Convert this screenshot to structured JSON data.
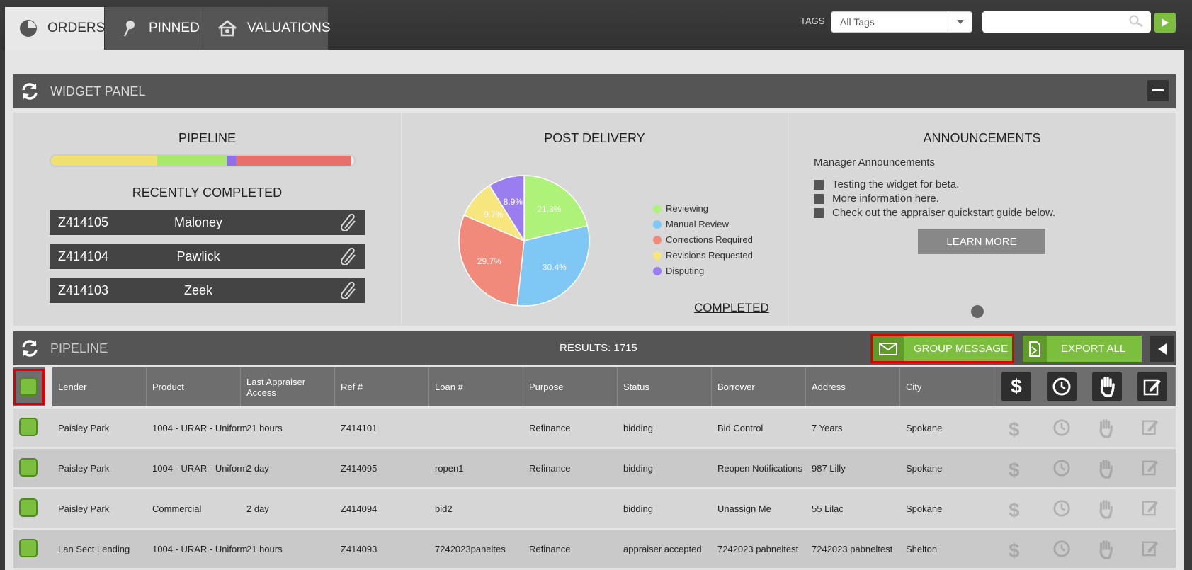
{
  "tabs": [
    {
      "label": "ORDERS",
      "icon": "pie-icon",
      "active": true
    },
    {
      "label": "PINNED",
      "icon": "pin-icon",
      "active": false
    },
    {
      "label": "VALUATIONS",
      "icon": "house-icon",
      "active": false
    }
  ],
  "tags": {
    "label": "TAGS",
    "value": "All Tags"
  },
  "widget_panel": {
    "title": "WIDGET PANEL"
  },
  "pipeline_widget": {
    "title": "PIPELINE",
    "bar_segments": [
      {
        "color": "#f0e070",
        "fraction": 0.35
      },
      {
        "color": "#a8e86c",
        "fraction": 0.23
      },
      {
        "color": "#8f70e8",
        "fraction": 0.03
      },
      {
        "color": "#e8706a",
        "fraction": 0.38
      }
    ],
    "recent_title": "RECENTLY COMPLETED",
    "recent": [
      {
        "ref": "Z414105",
        "name": "Maloney"
      },
      {
        "ref": "Z414104",
        "name": "Pawlick"
      },
      {
        "ref": "Z414103",
        "name": "Zeek"
      }
    ]
  },
  "post_delivery": {
    "title": "POST DELIVERY",
    "completed_link": "COMPLETED"
  },
  "chart_data": {
    "type": "pie",
    "title": "POST DELIVERY",
    "labels": [
      "Reviewing",
      "Manual Review",
      "Corrections Required",
      "Revisions Requested",
      "Disputing"
    ],
    "values": [
      21.3,
      30.4,
      29.7,
      9.7,
      8.9
    ],
    "value_labels": [
      "21.3%",
      "30.4%",
      "29.7%",
      "9.7%",
      "8.9%"
    ],
    "colors": [
      "#aef27a",
      "#7fc7f5",
      "#f28a7c",
      "#f7e57e",
      "#9a7ef0"
    ],
    "legend_position": "right"
  },
  "announcements": {
    "title": "ANNOUNCEMENTS",
    "subtitle": "Manager Announcements",
    "items": [
      "Testing the widget for beta.",
      "More information here.",
      "Check out the appraiser quickstart guide below."
    ],
    "button": "LEARN MORE"
  },
  "pipeline": {
    "title": "PIPELINE",
    "results": "RESULTS: 1715",
    "group_message": "GROUP MESSAGE",
    "export_all": "EXPORT ALL",
    "columns": [
      "Lender",
      "Product",
      "Last Appraiser Access",
      "Ref #",
      "Loan #",
      "Purpose",
      "Status",
      "Borrower",
      "Address",
      "City"
    ],
    "rows": [
      [
        "Paisley Park",
        "1004 - URAR - Uniform",
        "21 hours",
        "Z414101",
        "",
        "Refinance",
        "bidding",
        "Bid Control",
        "7 Years",
        "Spokane"
      ],
      [
        "Paisley Park",
        "1004 - URAR - Uniform",
        "2 day",
        "Z414095",
        "ropen1",
        "Refinance",
        "bidding",
        "Reopen Notifications",
        "987 Lilly",
        "Spokane"
      ],
      [
        "Paisley Park",
        "Commercial",
        "2 day",
        "Z414094",
        "bid2",
        "",
        "bidding",
        "Unassign Me",
        "55 Lilac",
        "Spokane"
      ],
      [
        "Lan Sect Lending",
        "1004 - URAR - Uniform",
        "21 hours",
        "Z414093",
        "7242023paneltes",
        "Refinance",
        "appraiser accepted",
        "7242023 pabneltest",
        "7242023 pabneltest",
        "Shelton"
      ]
    ],
    "action_icons": [
      "dollar-icon",
      "clock-icon",
      "hand-icon",
      "edit-icon"
    ]
  }
}
